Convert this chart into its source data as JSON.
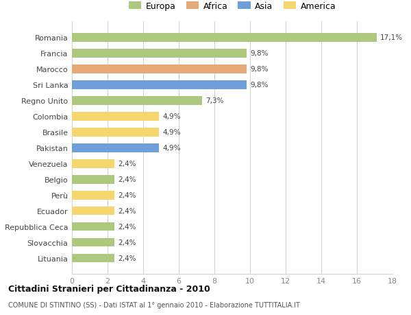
{
  "categories": [
    "Romania",
    "Francia",
    "Marocco",
    "Sri Lanka",
    "Regno Unito",
    "Colombia",
    "Brasile",
    "Pakistan",
    "Venezuela",
    "Belgio",
    "Perù",
    "Ecuador",
    "Repubblica Ceca",
    "Slovacchia",
    "Lituania"
  ],
  "values": [
    17.1,
    9.8,
    9.8,
    9.8,
    7.3,
    4.9,
    4.9,
    4.9,
    2.4,
    2.4,
    2.4,
    2.4,
    2.4,
    2.4,
    2.4
  ],
  "labels": [
    "17,1%",
    "9,8%",
    "9,8%",
    "9,8%",
    "7,3%",
    "4,9%",
    "4,9%",
    "4,9%",
    "2,4%",
    "2,4%",
    "2,4%",
    "2,4%",
    "2,4%",
    "2,4%",
    "2,4%"
  ],
  "colors": [
    "#aec97d",
    "#aec97d",
    "#e8a878",
    "#6f9fd8",
    "#aec97d",
    "#f5d76e",
    "#f5d76e",
    "#6f9fd8",
    "#f5d76e",
    "#aec97d",
    "#f5d76e",
    "#f5d76e",
    "#aec97d",
    "#aec97d",
    "#aec97d"
  ],
  "legend_labels": [
    "Europa",
    "Africa",
    "Asia",
    "America"
  ],
  "legend_colors": [
    "#aec97d",
    "#e8a878",
    "#6f9fd8",
    "#f5d76e"
  ],
  "xlim": [
    0,
    18
  ],
  "xticks": [
    0,
    2,
    4,
    6,
    8,
    10,
    12,
    14,
    16,
    18
  ],
  "title": "Cittadini Stranieri per Cittadinanza - 2010",
  "subtitle": "COMUNE DI STINTINO (SS) - Dati ISTAT al 1° gennaio 2010 - Elaborazione TUTTITALIA.IT",
  "bg_color": "#ffffff",
  "grid_color": "#d0d0d0",
  "bar_height": 0.55
}
